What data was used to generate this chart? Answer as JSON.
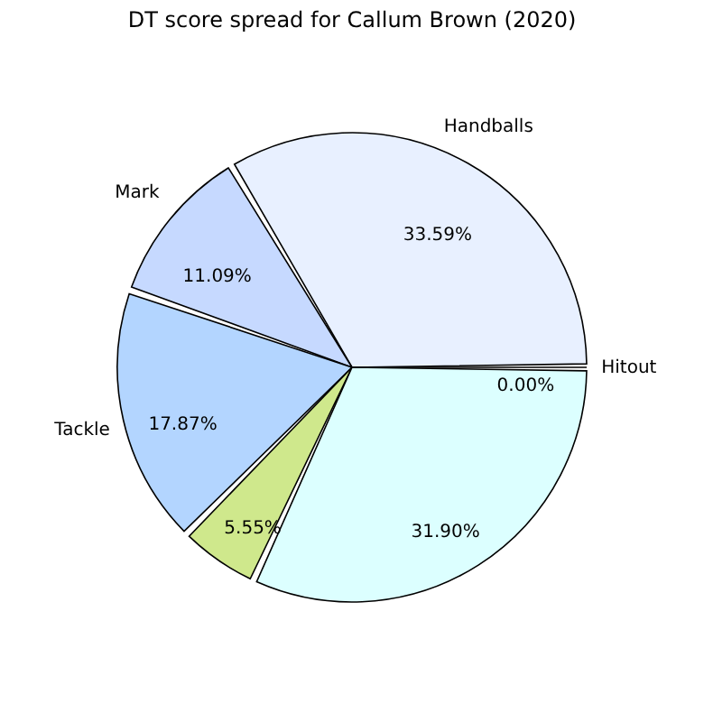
{
  "chart_data": {
    "type": "pie",
    "title": "DT score spread for Callum Brown (2020)",
    "categories": [
      "Handballs",
      "Mark",
      "Tackle",
      null,
      null,
      "Hitout"
    ],
    "values": [
      33.59,
      11.09,
      17.87,
      5.55,
      31.9,
      0.0
    ],
    "colors": [
      "#e8f0ff",
      "#c6d9ff",
      "#b3d5ff",
      "#cfe88c",
      "#dcffff",
      "#ffffff"
    ],
    "value_labels": [
      "33.59%",
      "11.09%",
      "17.87%",
      "5.55%",
      "31.90%",
      "0.00%"
    ],
    "legend": false
  }
}
